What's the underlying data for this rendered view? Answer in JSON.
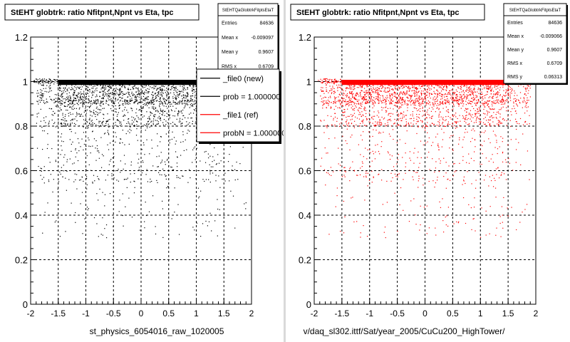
{
  "chart_data": [
    {
      "type": "scatter",
      "title": "StEHT globtrk: ratio Nfitpnt,Npnt vs Eta, tpc",
      "xlabel": "st_physics_6054016_raw_1020005",
      "ylabel": "",
      "xlim": [
        -2,
        2
      ],
      "ylim": [
        0,
        1.2
      ],
      "x_ticks": [
        "-2",
        "-1.5",
        "-1",
        "-0.5",
        "0",
        "0.5",
        "1",
        "1.5",
        "2"
      ],
      "y_ticks": [
        "0",
        "0.2",
        "0.4",
        "0.6",
        "0.8",
        "1",
        "1.2"
      ],
      "grid": true,
      "point_color": "#000000",
      "stats": {
        "header": "StEHTQaGlobtrkFitptsEtaT",
        "rows": [
          {
            "label": "Entries",
            "value": "84636"
          },
          {
            "label": "Mean x",
            "value": "-0.009097"
          },
          {
            "label": "Mean y",
            "value": "0.9607"
          },
          {
            "label": "RMS x",
            "value": "0.6709"
          }
        ]
      },
      "legend": {
        "placement": "top-right",
        "entries": [
          {
            "label": "_file0 (new)",
            "color": "#000000"
          },
          {
            "label": "prob = 1.000000",
            "color": "#000000"
          },
          {
            "label": "_file1 (ref)",
            "color": "#ff0000"
          },
          {
            "label": "probN = 1.000000",
            "color": "#ff0000"
          }
        ]
      }
    },
    {
      "type": "scatter",
      "title": "StEHT globtrk: ratio Nfitpnt,Npnt vs Eta, tpc",
      "xlabel": "v/daq_sl302.ittf/Sat/year_2005/CuCu200_HighTower/",
      "ylabel": "",
      "xlim": [
        -2,
        2
      ],
      "ylim": [
        0,
        1.2
      ],
      "x_ticks": [
        "-2",
        "-1.5",
        "-1",
        "-0.5",
        "0",
        "0.5",
        "1",
        "1.5",
        "2"
      ],
      "y_ticks": [
        "0",
        "0.2",
        "0.4",
        "0.6",
        "0.8",
        "1",
        "1.2"
      ],
      "grid": true,
      "point_color": "#ff0000",
      "stats": {
        "header": "StEHTQaGlobtrkFitptsEtaT",
        "rows": [
          {
            "label": "Entries",
            "value": "84636"
          },
          {
            "label": "Mean x",
            "value": "-0.009066"
          },
          {
            "label": "Mean y",
            "value": "0.9607"
          },
          {
            "label": "RMS x",
            "value": "0.6709"
          },
          {
            "label": "RMS y",
            "value": "0.06313"
          }
        ]
      }
    }
  ]
}
